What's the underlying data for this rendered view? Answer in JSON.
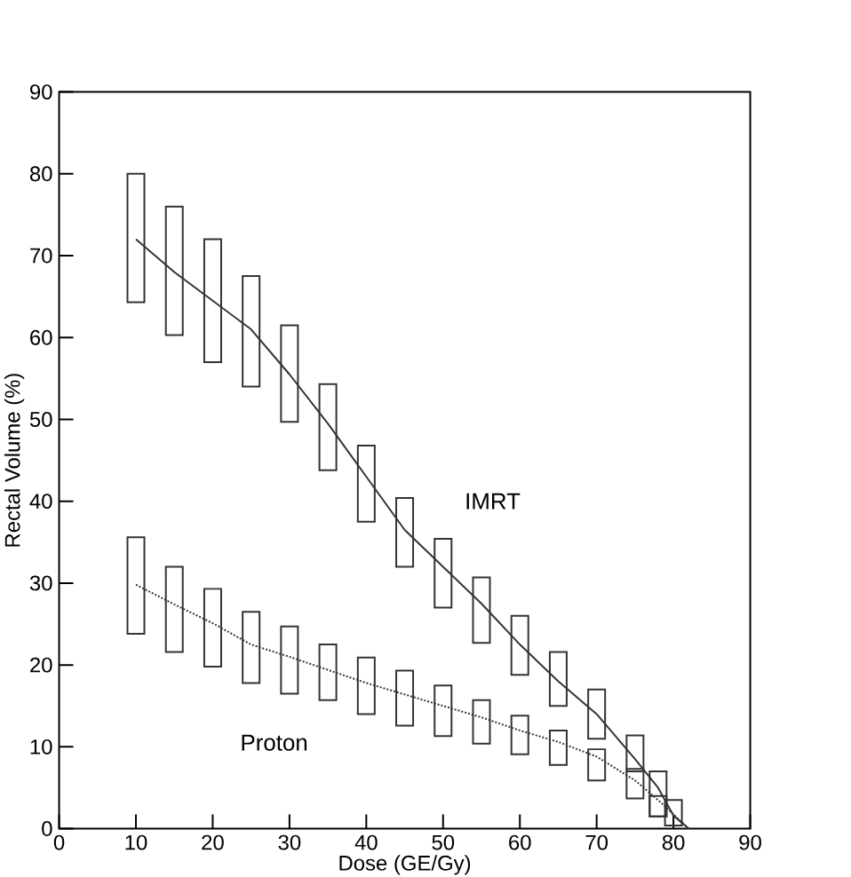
{
  "chart_data": {
    "type": "line",
    "xlabel": "Dose (GE/Gy)",
    "ylabel": "Rectal Volume (%)",
    "xlim": [
      0,
      90
    ],
    "ylim": [
      0,
      90
    ],
    "xticks": [
      0,
      10,
      20,
      30,
      40,
      50,
      60,
      70,
      80,
      90
    ],
    "yticks": [
      0,
      10,
      20,
      30,
      40,
      50,
      60,
      70,
      80,
      90
    ],
    "grid": false,
    "legend": false,
    "marker": "none",
    "series": [
      {
        "name": "IMRT",
        "color": "#333333",
        "line_style": "solid",
        "x": [
          10,
          15,
          20,
          25,
          30,
          35,
          40,
          45,
          50,
          55,
          60,
          65,
          70,
          75,
          78,
          80,
          82
        ],
        "values": [
          72,
          68,
          64.5,
          61,
          55.5,
          49.5,
          43,
          36.5,
          32,
          27.5,
          22.5,
          18,
          14,
          8.5,
          5,
          1.6,
          0
        ]
      },
      {
        "name": "Proton",
        "color": "#333333",
        "line_style": "dotted",
        "x": [
          10,
          15,
          20,
          25,
          30,
          35,
          40,
          45,
          50,
          55,
          60,
          65,
          70,
          75,
          78,
          82
        ],
        "values": [
          29.8,
          27.4,
          25.1,
          22.5,
          21,
          19.4,
          17.8,
          16.4,
          15,
          13.6,
          12,
          10.6,
          8.8,
          5.9,
          3.5,
          0
        ]
      },
      {
        "type": "bar",
        "color": "#333333",
        "x": [
          10,
          15,
          20,
          25,
          30,
          35,
          40,
          45,
          50,
          55,
          60,
          65,
          70,
          75,
          78,
          80
        ],
        "base": [
          64.3,
          60.3,
          57,
          54,
          49.7,
          43.8,
          37.5,
          32,
          27,
          22.7,
          18.8,
          15,
          11,
          7,
          1.5,
          0.4
        ],
        "values": [
          15.7,
          15.7,
          15,
          13.5,
          11.8,
          10.5,
          9.3,
          8.4,
          8.4,
          8,
          7.2,
          6.6,
          6,
          4.4,
          5.5,
          3.1
        ]
      },
      {
        "type": "bar",
        "color": "#333333",
        "x": [
          10,
          15,
          20,
          25,
          30,
          35,
          40,
          45,
          50,
          55,
          60,
          65,
          70,
          75,
          78
        ],
        "base": [
          23.8,
          21.6,
          19.8,
          17.8,
          16.5,
          15.7,
          14,
          12.6,
          11.3,
          10.4,
          9.1,
          7.8,
          5.9,
          3.7,
          1.5
        ],
        "values": [
          11.8,
          10.4,
          9.5,
          8.7,
          8.2,
          6.8,
          6.9,
          6.7,
          6.2,
          5.3,
          4.7,
          4.2,
          3.8,
          3.6,
          2.5
        ]
      }
    ]
  }
}
